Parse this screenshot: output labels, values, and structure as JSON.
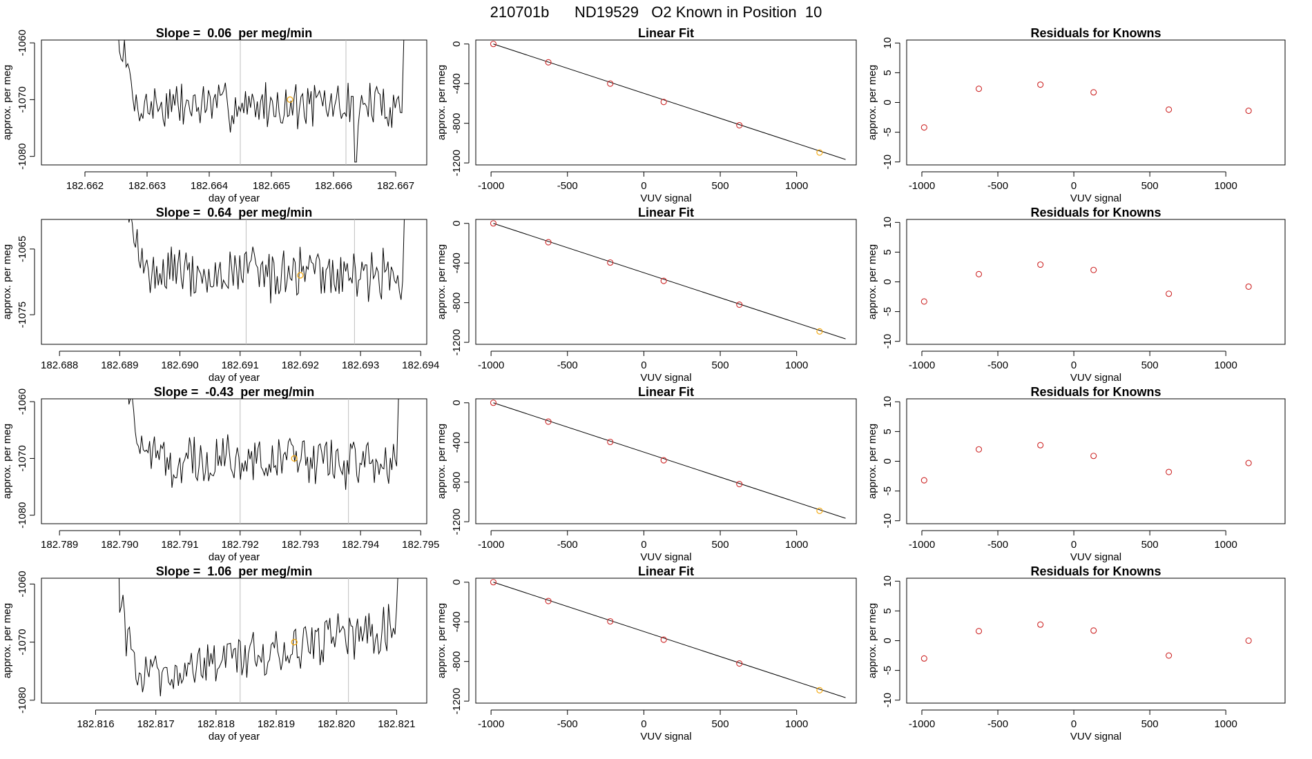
{
  "page_title": "210701b      ND19529   O2 Known in Position  10",
  "colors": {
    "axis": "#000000",
    "line": "#000000",
    "vline": "#bebebe",
    "point_red": "#cd2626",
    "point_orange": "#f4a400"
  },
  "chart_data": [
    {
      "type": "line",
      "title": "Slope =  0.06  per meg/min",
      "xlabel": "day of year",
      "ylabel": "approx. per meg",
      "xlim": [
        182.6613,
        182.6675
      ],
      "ylim": [
        -1081.5,
        -1059.5
      ],
      "xticks": [
        182.662,
        182.663,
        182.664,
        182.665,
        182.666,
        182.667
      ],
      "xtick_labels": [
        "182.662",
        "182.663",
        "182.664",
        "182.665",
        "182.666",
        "182.667"
      ],
      "yticks": [
        -1080,
        -1070,
        -1060
      ],
      "ytick_labels": [
        "-1080",
        "-1070",
        "-1060"
      ],
      "vlines": [
        182.6645,
        182.6662
      ],
      "highlight": {
        "x": 182.6653,
        "y": -1070
      },
      "x_start": 182.6625,
      "x_end": 182.6671,
      "spike_pos": 0.84,
      "spike_depth": -1081,
      "trend": [
        -1071,
        -1071
      ]
    },
    {
      "type": "scatter",
      "title": "Linear Fit",
      "xlabel": "VUV signal",
      "ylabel": "approx. per meg",
      "xlim": [
        -1100,
        1390
      ],
      "ylim": [
        -1220,
        40
      ],
      "xticks": [
        -1000,
        -500,
        0,
        500,
        1000
      ],
      "xtick_labels": [
        "-1000",
        "-500",
        "0",
        "500",
        "1000"
      ],
      "yticks": [
        -1200,
        -800,
        -400,
        0
      ],
      "ytick_labels": [
        "-1200",
        "-800",
        "-400",
        "0"
      ],
      "x": [
        -985,
        -625,
        -220,
        130,
        625,
        1150
      ],
      "y": [
        0,
        -185,
        -400,
        -585,
        -820,
        -1095
      ],
      "fit_line": {
        "x": [
          -985,
          1320
        ],
        "y": [
          0,
          -1165
        ]
      }
    },
    {
      "type": "scatter",
      "title": "Residuals for Knowns",
      "xlabel": "VUV signal",
      "ylabel": "approx. per meg",
      "xlim": [
        -1100,
        1390
      ],
      "ylim": [
        -10.5,
        10.5
      ],
      "xticks": [
        -1000,
        -500,
        0,
        500,
        1000
      ],
      "xtick_labels": [
        "-1000",
        "-500",
        "0",
        "500",
        "1000"
      ],
      "yticks": [
        -10,
        -5,
        0,
        5,
        10
      ],
      "ytick_labels": [
        "-10",
        "-5",
        "0",
        "5",
        "10"
      ],
      "x": [
        -985,
        -625,
        -220,
        130,
        625,
        1150
      ],
      "y": [
        -4.2,
        2.3,
        3.0,
        1.7,
        -1.2,
        -1.4
      ]
    },
    {
      "type": "line",
      "title": "Slope =  0.64  per meg/min",
      "xlabel": "day of year",
      "ylabel": "approx. per meg",
      "xlim": [
        182.6877,
        182.6941
      ],
      "ylim": [
        -1079.5,
        -1060.5
      ],
      "xticks": [
        182.688,
        182.689,
        182.69,
        182.691,
        182.692,
        182.693,
        182.694
      ],
      "xtick_labels": [
        "182.688",
        "182.689",
        "182.690",
        "182.691",
        "182.692",
        "182.693",
        "182.694"
      ],
      "yticks": [
        -1075,
        -1065
      ],
      "ytick_labels": [
        "-1075",
        "-1065"
      ],
      "vlines": [
        182.6911,
        182.6929
      ],
      "highlight": {
        "x": 182.692,
        "y": -1069
      },
      "x_start": 182.6891,
      "x_end": 182.6937,
      "trend": [
        -1069,
        -1069
      ]
    },
    {
      "type": "scatter",
      "title": "Linear Fit",
      "xlabel": "VUV signal",
      "ylabel": "approx. per meg",
      "xlim": [
        -1100,
        1390
      ],
      "ylim": [
        -1220,
        40
      ],
      "xticks": [
        -1000,
        -500,
        0,
        500,
        1000
      ],
      "xtick_labels": [
        "-1000",
        "-500",
        "0",
        "500",
        "1000"
      ],
      "yticks": [
        -1200,
        -800,
        -400,
        0
      ],
      "ytick_labels": [
        "-1200",
        "-800",
        "-400",
        "0"
      ],
      "x": [
        -985,
        -625,
        -220,
        130,
        625,
        1150
      ],
      "y": [
        0,
        -190,
        -395,
        -580,
        -820,
        -1090
      ],
      "fit_line": {
        "x": [
          -985,
          1320
        ],
        "y": [
          0,
          -1165
        ]
      }
    },
    {
      "type": "scatter",
      "title": "Residuals for Knowns",
      "xlabel": "VUV signal",
      "ylabel": "approx. per meg",
      "xlim": [
        -1100,
        1390
      ],
      "ylim": [
        -10.5,
        10.5
      ],
      "xticks": [
        -1000,
        -500,
        0,
        500,
        1000
      ],
      "xtick_labels": [
        "-1000",
        "-500",
        "0",
        "500",
        "1000"
      ],
      "yticks": [
        -10,
        -5,
        0,
        5,
        10
      ],
      "ytick_labels": [
        "-10",
        "-5",
        "0",
        "5",
        "10"
      ],
      "x": [
        -985,
        -625,
        -220,
        130,
        625,
        1150
      ],
      "y": [
        -3.3,
        1.3,
        2.9,
        2.0,
        -2.0,
        -0.8
      ]
    },
    {
      "type": "line",
      "title": "Slope =  -0.43  per meg/min",
      "xlabel": "day of year",
      "ylabel": "approx. per meg",
      "xlim": [
        182.7887,
        182.7951
      ],
      "ylim": [
        -1081.5,
        -1059.5
      ],
      "xticks": [
        182.789,
        182.79,
        182.791,
        182.792,
        182.793,
        182.794,
        182.795
      ],
      "xtick_labels": [
        "182.789",
        "182.790",
        "182.791",
        "182.792",
        "182.793",
        "182.794",
        "182.795"
      ],
      "yticks": [
        -1080,
        -1070,
        -1060
      ],
      "ytick_labels": [
        "-1080",
        "-1070",
        "-1060"
      ],
      "vlines": [
        182.792,
        182.7938
      ],
      "highlight": {
        "x": 182.7929,
        "y": -1070
      },
      "x_start": 182.7901,
      "x_end": 182.7946,
      "trend": [
        -1070,
        -1071
      ]
    },
    {
      "type": "scatter",
      "title": "Linear Fit",
      "xlabel": "VUV signal",
      "ylabel": "approx. per meg",
      "xlim": [
        -1100,
        1390
      ],
      "ylim": [
        -1220,
        40
      ],
      "xticks": [
        -1000,
        -500,
        0,
        500,
        1000
      ],
      "xtick_labels": [
        "-1000",
        "-500",
        "0",
        "500",
        "1000"
      ],
      "yticks": [
        -1200,
        -800,
        -400,
        0
      ],
      "ytick_labels": [
        "-1200",
        "-800",
        "-400",
        "0"
      ],
      "x": [
        -985,
        -625,
        -220,
        130,
        625,
        1150
      ],
      "y": [
        0,
        -190,
        -395,
        -580,
        -820,
        -1090
      ],
      "fit_line": {
        "x": [
          -985,
          1320
        ],
        "y": [
          0,
          -1165
        ]
      }
    },
    {
      "type": "scatter",
      "title": "Residuals for Knowns",
      "xlabel": "VUV signal",
      "ylabel": "approx. per meg",
      "xlim": [
        -1100,
        1390
      ],
      "ylim": [
        -10.5,
        10.5
      ],
      "xticks": [
        -1000,
        -500,
        0,
        500,
        1000
      ],
      "xtick_labels": [
        "-1000",
        "-500",
        "0",
        "500",
        "1000"
      ],
      "yticks": [
        -10,
        -5,
        0,
        5,
        10
      ],
      "ytick_labels": [
        "-10",
        "-5",
        "0",
        "5",
        "10"
      ],
      "x": [
        -985,
        -625,
        -220,
        130,
        625,
        1150
      ],
      "y": [
        -3.2,
        2.0,
        2.7,
        0.9,
        -1.8,
        -0.3
      ]
    },
    {
      "type": "line",
      "title": "Slope =  1.06  per meg/min",
      "xlabel": "day of year",
      "ylabel": "approx. per meg",
      "xlim": [
        182.8151,
        182.8215
      ],
      "ylim": [
        -1080.5,
        -1059
      ],
      "xticks": [
        182.816,
        182.817,
        182.818,
        182.819,
        182.82,
        182.821
      ],
      "xtick_labels": [
        "182.816",
        "182.817",
        "182.818",
        "182.819",
        "182.820",
        "182.821"
      ],
      "yticks": [
        -1080,
        -1070,
        -1060
      ],
      "ytick_labels": [
        "-1080",
        "-1070",
        "-1060"
      ],
      "vlines": [
        182.8184,
        182.8202
      ],
      "highlight": {
        "x": 182.8193,
        "y": -1070
      },
      "x_start": 182.8164,
      "x_end": 182.821,
      "trend": [
        -1077,
        -1067
      ]
    },
    {
      "type": "scatter",
      "title": "Linear Fit",
      "xlabel": "VUV signal",
      "ylabel": "approx. per meg",
      "xlim": [
        -1100,
        1390
      ],
      "ylim": [
        -1220,
        40
      ],
      "xticks": [
        -1000,
        -500,
        0,
        500,
        1000
      ],
      "xtick_labels": [
        "-1000",
        "-500",
        "0",
        "500",
        "1000"
      ],
      "yticks": [
        -1200,
        -800,
        -400,
        0
      ],
      "ytick_labels": [
        "-1200",
        "-800",
        "-400",
        "0"
      ],
      "x": [
        -985,
        -625,
        -220,
        130,
        625,
        1150
      ],
      "y": [
        0,
        -190,
        -395,
        -580,
        -820,
        -1090
      ],
      "fit_line": {
        "x": [
          -985,
          1320
        ],
        "y": [
          0,
          -1165
        ]
      }
    },
    {
      "type": "scatter",
      "title": "Residuals for Knowns",
      "xlabel": "VUV signal",
      "ylabel": "approx. per meg",
      "xlim": [
        -1100,
        1390
      ],
      "ylim": [
        -10.5,
        10.5
      ],
      "xticks": [
        -1000,
        -500,
        0,
        500,
        1000
      ],
      "xtick_labels": [
        "-1000",
        "-500",
        "0",
        "500",
        "1000"
      ],
      "yticks": [
        -10,
        -5,
        0,
        5,
        10
      ],
      "ytick_labels": [
        "-10",
        "-5",
        "0",
        "5",
        "10"
      ],
      "x": [
        -985,
        -625,
        -220,
        130,
        625,
        1150
      ],
      "y": [
        -3.0,
        1.6,
        2.7,
        1.7,
        -2.5,
        0.0
      ]
    }
  ]
}
